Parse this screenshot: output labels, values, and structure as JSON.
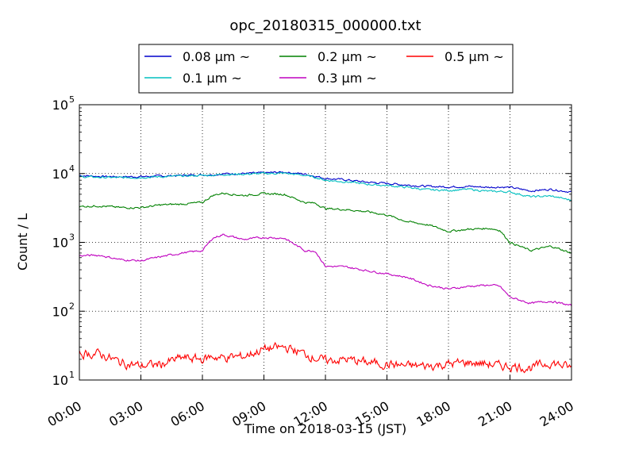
{
  "chart_data": {
    "type": "line",
    "title": "opc_20180315_000000.txt",
    "xlabel": "Time on 2018-03-15 (JST)",
    "ylabel": "Count / L",
    "yscale": "log",
    "xlim_hours": [
      0,
      24
    ],
    "ylim": [
      10,
      100000
    ],
    "grid": true,
    "legend_placement": "top-center",
    "x_tick_labels": [
      "00:00",
      "03:00",
      "06:00",
      "09:00",
      "12:00",
      "15:00",
      "18:00",
      "21:00",
      "24:00"
    ],
    "y_tick_labels": [
      {
        "base": "10",
        "exp": "1"
      },
      {
        "base": "10",
        "exp": "2"
      },
      {
        "base": "10",
        "exp": "3"
      },
      {
        "base": "10",
        "exp": "4"
      },
      {
        "base": "10",
        "exp": "5"
      }
    ],
    "x_hours": [
      0,
      1,
      2,
      3,
      4,
      5,
      6,
      6.5,
      7,
      8,
      9,
      10,
      11,
      11.5,
      12,
      13,
      14,
      15,
      16,
      17,
      18,
      19,
      20,
      20.5,
      21,
      22,
      23,
      24
    ],
    "series": [
      {
        "name": "0.08 μm ~",
        "color": "#0000cc",
        "values": [
          9400,
          9100,
          9000,
          9000,
          9200,
          9400,
          9600,
          9600,
          9900,
          10000,
          10200,
          10500,
          9800,
          9200,
          8500,
          8100,
          7500,
          7200,
          6800,
          6500,
          6400,
          6500,
          6300,
          6400,
          6300,
          5600,
          5900,
          5400
        ]
      },
      {
        "name": "0.1 μm ~",
        "color": "#00bfbf",
        "values": [
          9000,
          8800,
          8700,
          8800,
          9000,
          9200,
          9400,
          9500,
          9700,
          9800,
          10000,
          10100,
          9400,
          8800,
          8000,
          7600,
          7000,
          6700,
          6300,
          5800,
          5700,
          5900,
          5500,
          5500,
          5400,
          4600,
          4700,
          4100
        ]
      },
      {
        "name": "0.2 μm ~",
        "color": "#008000",
        "values": [
          3300,
          3400,
          3200,
          3200,
          3500,
          3600,
          3800,
          4800,
          5200,
          4800,
          5100,
          5000,
          3800,
          3700,
          3100,
          3000,
          2800,
          2500,
          2000,
          1800,
          1450,
          1550,
          1600,
          1500,
          1000,
          760,
          880,
          700
        ]
      },
      {
        "name": "0.3 μm ~",
        "color": "#bf00bf",
        "values": [
          640,
          650,
          560,
          540,
          620,
          700,
          760,
          1150,
          1300,
          1100,
          1180,
          1150,
          760,
          750,
          450,
          440,
          390,
          350,
          310,
          240,
          210,
          230,
          240,
          230,
          160,
          130,
          140,
          120
        ]
      },
      {
        "name": "0.5 μm ~",
        "color": "#ff0000",
        "values": [
          24,
          24,
          18,
          16,
          17,
          21,
          20,
          22,
          21,
          22,
          28,
          30,
          24,
          21,
          19,
          20,
          18,
          17,
          16,
          16,
          17,
          18,
          17,
          16,
          16,
          15,
          18,
          15
        ]
      }
    ]
  }
}
